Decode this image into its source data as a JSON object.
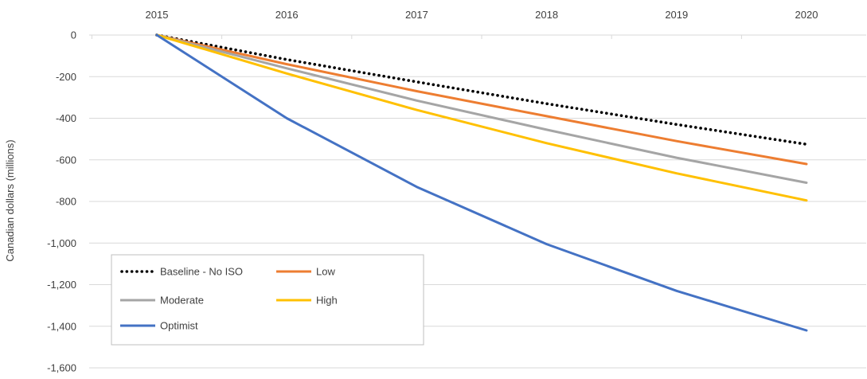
{
  "chart_data": {
    "type": "line",
    "title": "",
    "xlabel": "",
    "ylabel": "Canadian dollars (millions)",
    "x": [
      "2015",
      "2016",
      "2017",
      "2018",
      "2019",
      "2020"
    ],
    "ylim": [
      -1600,
      0
    ],
    "yticks": [
      0,
      -200,
      -400,
      -600,
      -800,
      -1000,
      -1200,
      -1400,
      -1600
    ],
    "ytick_labels": [
      "0",
      "-200",
      "-400",
      "-600",
      "-800",
      "-1,000",
      "-1,200",
      "-1,400",
      "-1,600"
    ],
    "x_axis_position": "top",
    "grid": true,
    "legend_position": "bottom-left",
    "series": [
      {
        "name": "Baseline - No ISO",
        "values": [
          0,
          -118,
          -225,
          -330,
          -430,
          -525
        ],
        "color": "#000000",
        "style": "dotted"
      },
      {
        "name": "Low",
        "values": [
          0,
          -140,
          -270,
          -390,
          -510,
          -620
        ],
        "color": "#ED7D31",
        "style": "solid"
      },
      {
        "name": "Moderate",
        "values": [
          0,
          -160,
          -315,
          -455,
          -590,
          -710
        ],
        "color": "#A5A5A5",
        "style": "solid"
      },
      {
        "name": "High",
        "values": [
          0,
          -185,
          -360,
          -520,
          -665,
          -795
        ],
        "color": "#FFC000",
        "style": "solid"
      },
      {
        "name": "Optimist",
        "values": [
          0,
          -400,
          -730,
          -1005,
          -1230,
          -1420
        ],
        "color": "#4472C4",
        "style": "solid"
      }
    ]
  }
}
